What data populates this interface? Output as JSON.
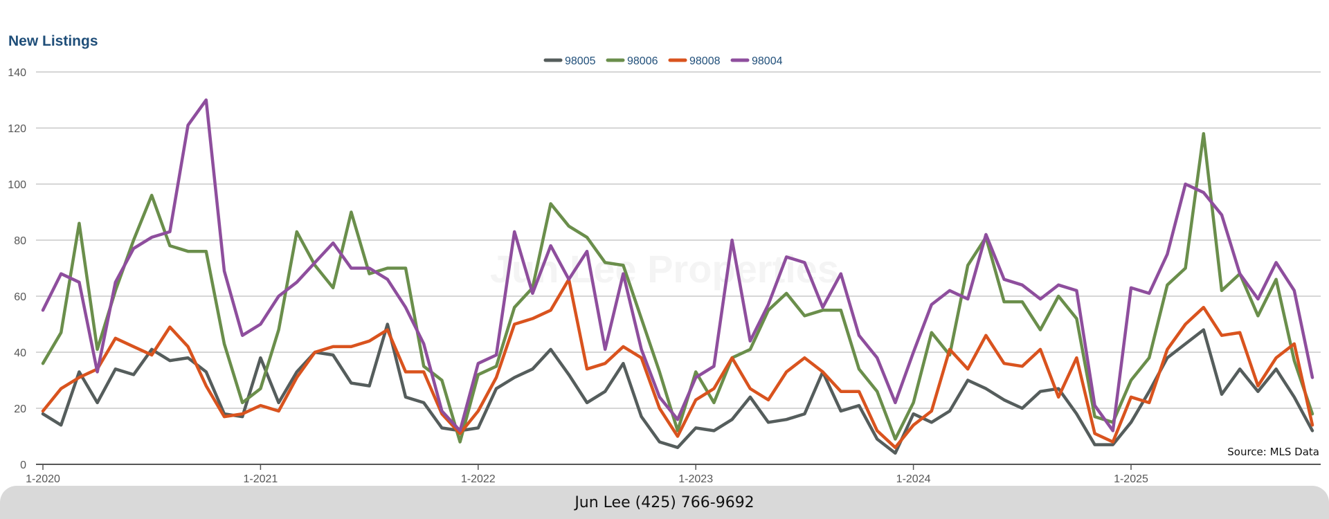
{
  "footer": {
    "contact": "Jun Lee (425) 766-9692"
  },
  "watermark": "Jun Lee Properties",
  "chart_data": {
    "type": "line",
    "title": "New Listings",
    "source_note": "Source: MLS Data",
    "legend_position": "top-center",
    "grid": true,
    "ylim": [
      0,
      140
    ],
    "y_ticks": [
      0,
      20,
      40,
      60,
      80,
      100,
      120,
      140
    ],
    "x_tick_labels": [
      "1-2020",
      "1-2021",
      "1-2022",
      "1-2023",
      "1-2024",
      "1-2025"
    ],
    "x_tick_indices": [
      0,
      12,
      24,
      36,
      48,
      60
    ],
    "series": [
      {
        "name": "98005",
        "color": "#555d5c",
        "values": [
          18,
          14,
          33,
          22,
          34,
          32,
          41,
          37,
          38,
          33,
          18,
          17,
          38,
          22,
          33,
          40,
          39,
          29,
          28,
          50,
          24,
          22,
          13,
          12,
          13,
          27,
          31,
          34,
          41,
          32,
          22,
          26,
          36,
          17,
          8,
          6,
          13,
          12,
          16,
          24,
          15,
          16,
          18,
          33,
          19,
          21,
          9,
          4,
          18,
          15,
          19,
          30,
          27,
          23,
          20,
          26,
          27,
          18,
          7,
          7,
          15,
          26,
          38,
          43,
          48,
          25,
          34,
          26,
          34,
          24,
          12
        ]
      },
      {
        "name": "98006",
        "color": "#6a8e4b",
        "values": [
          36,
          47,
          86,
          41,
          62,
          80,
          96,
          78,
          76,
          76,
          43,
          22,
          27,
          48,
          83,
          71,
          63,
          90,
          68,
          70,
          70,
          35,
          30,
          8,
          32,
          35,
          56,
          63,
          93,
          85,
          81,
          72,
          71,
          52,
          33,
          12,
          33,
          22,
          38,
          41,
          55,
          61,
          53,
          55,
          55,
          34,
          26,
          9,
          22,
          47,
          39,
          71,
          81,
          58,
          58,
          48,
          60,
          52,
          17,
          15,
          30,
          38,
          64,
          70,
          118,
          62,
          68,
          53,
          66,
          37,
          18
        ]
      },
      {
        "name": "98008",
        "color": "#d9531e",
        "values": [
          19,
          27,
          31,
          34,
          45,
          42,
          39,
          49,
          42,
          28,
          17,
          18,
          21,
          19,
          31,
          40,
          42,
          42,
          44,
          48,
          33,
          33,
          18,
          11,
          19,
          31,
          50,
          52,
          55,
          66,
          34,
          36,
          42,
          38,
          20,
          10,
          23,
          27,
          38,
          27,
          23,
          33,
          38,
          33,
          26,
          26,
          12,
          6,
          14,
          19,
          41,
          34,
          46,
          36,
          35,
          41,
          24,
          38,
          11,
          8,
          24,
          22,
          41,
          50,
          56,
          46,
          47,
          28,
          38,
          43,
          14
        ]
      },
      {
        "name": "98004",
        "color": "#8e4e9d",
        "values": [
          55,
          68,
          65,
          33,
          65,
          77,
          81,
          83,
          121,
          130,
          69,
          46,
          50,
          60,
          65,
          72,
          79,
          70,
          70,
          66,
          56,
          43,
          19,
          12,
          36,
          39,
          83,
          61,
          78,
          66,
          76,
          41,
          68,
          41,
          24,
          16,
          31,
          35,
          80,
          44,
          57,
          74,
          72,
          56,
          68,
          46,
          38,
          22,
          40,
          57,
          62,
          59,
          82,
          66,
          64,
          59,
          64,
          62,
          21,
          12,
          63,
          61,
          75,
          100,
          97,
          89,
          68,
          59,
          72,
          62,
          31
        ]
      }
    ]
  }
}
